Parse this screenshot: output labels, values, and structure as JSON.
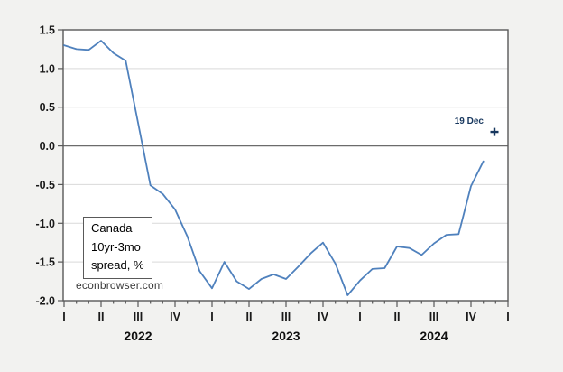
{
  "chart_data": {
    "type": "line",
    "title": "Canada 10yr-3mo spread, %",
    "legend": {
      "lines": [
        "Canada",
        "10yr-3mo",
        "spread, %"
      ]
    },
    "watermark": "econbrowser.com",
    "x_start_month": "2022-01",
    "x_axis": {
      "quarter_labels": [
        "I",
        "II",
        "III",
        "IV",
        "I",
        "II",
        "III",
        "IV",
        "I",
        "II",
        "III",
        "IV",
        "I"
      ],
      "year_labels": [
        "2022",
        "2023",
        "2024"
      ],
      "months_shown": 36
    },
    "y_axis": {
      "ticks": [
        1.5,
        1.0,
        0.5,
        0.0,
        -0.5,
        -1.0,
        -1.5,
        -2.0
      ],
      "range": [
        -2.0,
        1.5
      ],
      "grid": "on"
    },
    "series": [
      {
        "name": "Canada 10yr-3mo spread, %",
        "frequency": "monthly",
        "values": [
          1.3,
          1.25,
          1.24,
          1.36,
          1.2,
          1.1,
          0.3,
          -0.51,
          -0.62,
          -0.82,
          -1.17,
          -1.62,
          -1.84,
          -1.5,
          -1.75,
          -1.85,
          -1.72,
          -1.66,
          -1.72,
          -1.56,
          -1.39,
          -1.25,
          -1.52,
          -1.93,
          -1.74,
          -1.59,
          -1.58,
          -1.3,
          -1.32,
          -1.41,
          -1.26,
          -1.15,
          -1.14,
          -0.52,
          -0.2
        ]
      }
    ],
    "annotation": {
      "label": "19 Dec",
      "marker": "plus-cross",
      "month_index": 34.9,
      "value": 0.18
    },
    "colors": {
      "line": "#4f81bd",
      "annotation": "#17375e",
      "frame": "#595959",
      "grid": "#d9d9d9",
      "zero_line": "#6b6b6b",
      "background": "#f2f2f0",
      "plot_bg": "#ffffff",
      "text": "#1a1a1a"
    }
  }
}
